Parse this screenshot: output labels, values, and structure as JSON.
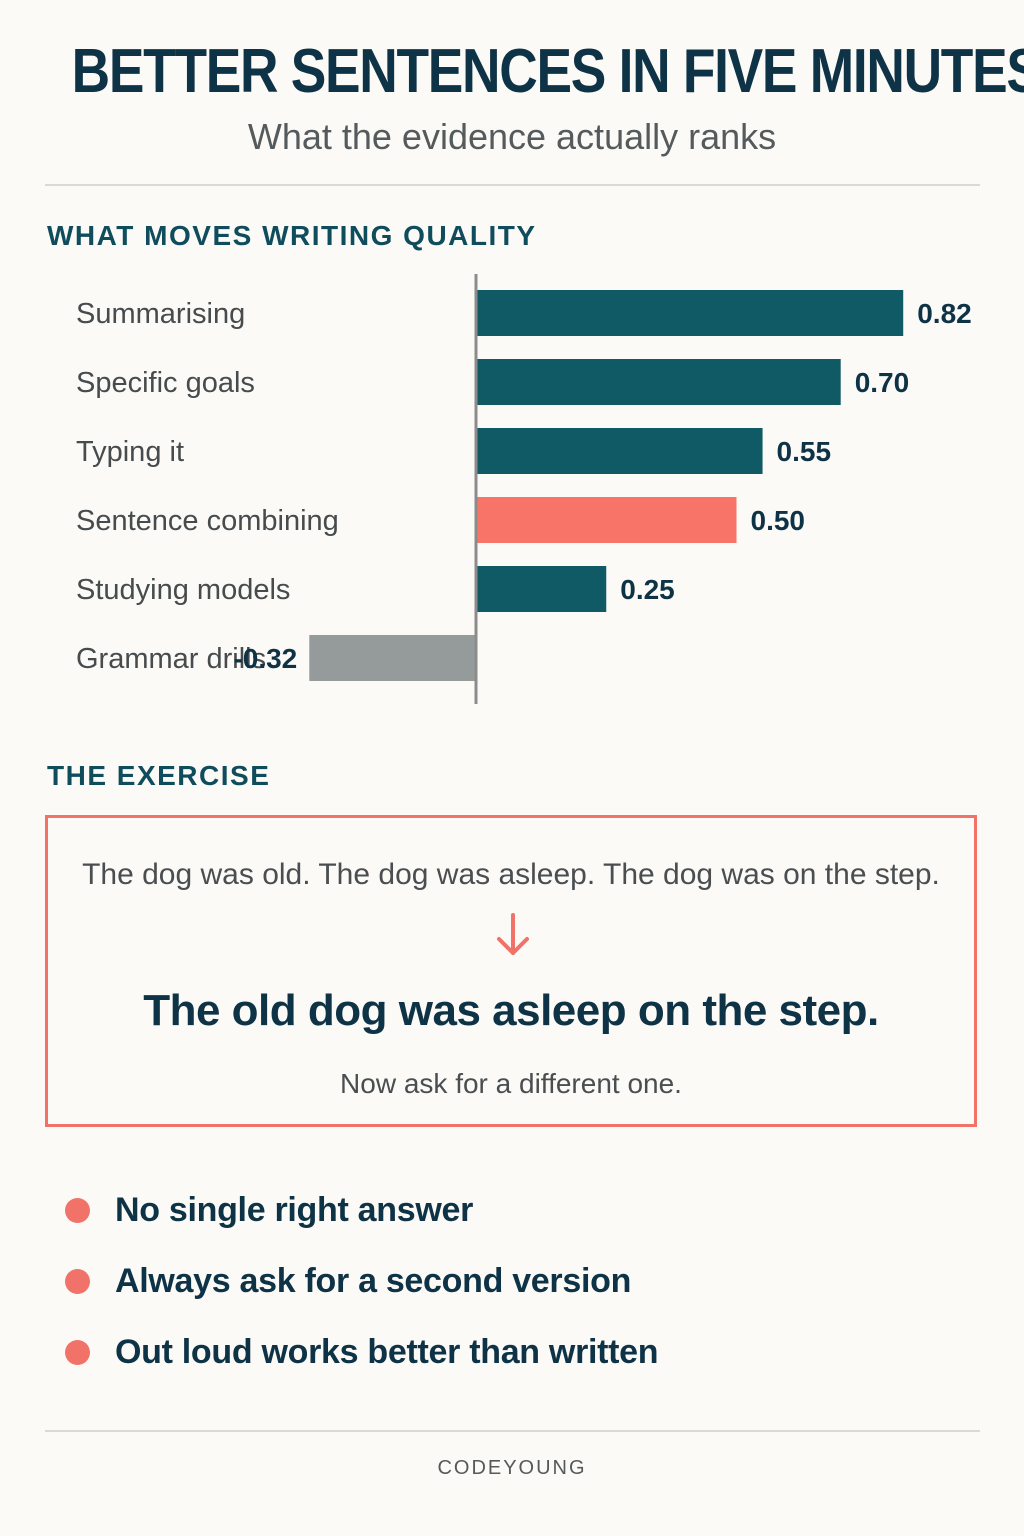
{
  "header": {
    "title": "BETTER SENTENCES IN FIVE MINUTES",
    "subtitle": "What the evidence actually ranks"
  },
  "chart_section": {
    "heading": "WHAT MOVES WRITING QUALITY"
  },
  "chart_data": {
    "type": "bar",
    "orientation": "horizontal",
    "title": "WHAT MOVES WRITING QUALITY",
    "categories": [
      "Summarising",
      "Specific goals",
      "Typing it",
      "Sentence combining",
      "Studying models",
      "Grammar drills"
    ],
    "values": [
      0.82,
      0.7,
      0.55,
      0.5,
      0.25,
      -0.32
    ],
    "value_labels": [
      "0.82",
      "0.70",
      "0.55",
      "0.50",
      "0.25",
      "-0.32"
    ],
    "xlim": [
      -0.36,
      0.9
    ],
    "grid": false,
    "legend": "none",
    "colors": {
      "positive": "#0f5a65",
      "highlight": "#f87468",
      "negative": "#959b9a",
      "axis": "#8c8c8c"
    },
    "highlight_category": "Sentence combining"
  },
  "exercise": {
    "heading": "THE EXERCISE",
    "before": "The dog was old. The dog was asleep.  The dog was on the step.",
    "arrow_icon": "arrow-down-icon",
    "after": "The old dog was asleep on the step.",
    "note": "Now ask for a different one.",
    "accent_color": "#f07268"
  },
  "tips": [
    "No single right answer",
    "Always ask for a second version",
    "Out loud works better than written"
  ],
  "footer": {
    "brand": "CODEYOUNG"
  }
}
